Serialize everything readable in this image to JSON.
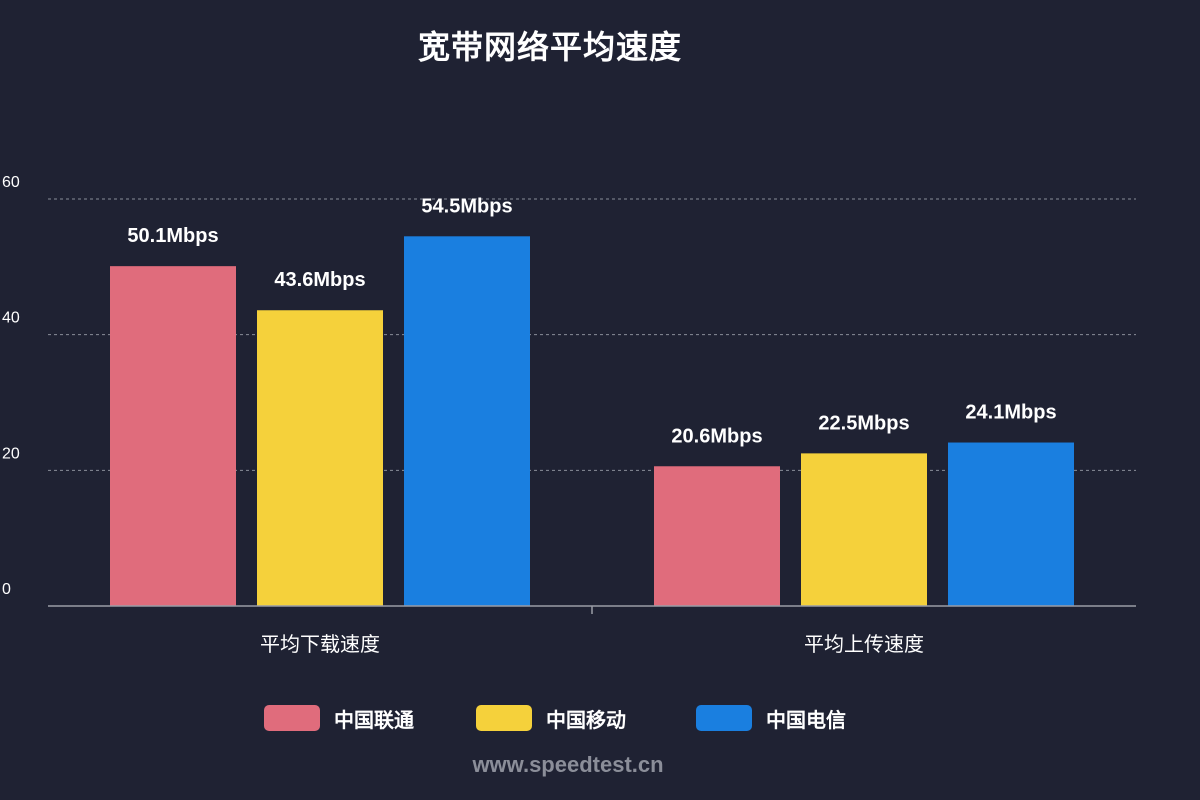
{
  "chart_data": {
    "type": "bar",
    "title": "宽带网络平均速度",
    "categories": [
      "平均下载速度",
      "平均上传速度"
    ],
    "series": [
      {
        "name": "中国联通",
        "color": "#e06c7c",
        "values": [
          50.1,
          20.6
        ],
        "labels": [
          "50.1Mbps",
          "20.6Mbps"
        ]
      },
      {
        "name": "中国移动",
        "color": "#f5d13b",
        "values": [
          43.6,
          22.5
        ],
        "labels": [
          "43.6Mbps",
          "22.5Mbps"
        ]
      },
      {
        "name": "中国电信",
        "color": "#1a7fe0",
        "values": [
          54.5,
          24.1
        ],
        "labels": [
          "54.5Mbps",
          "24.1Mbps"
        ]
      }
    ],
    "yticks": [
      "0",
      "20",
      "40",
      "60"
    ],
    "ylim": [
      0,
      60
    ],
    "grid": true,
    "legend_position": "bottom"
  },
  "watermark": "www.speedtest.cn"
}
